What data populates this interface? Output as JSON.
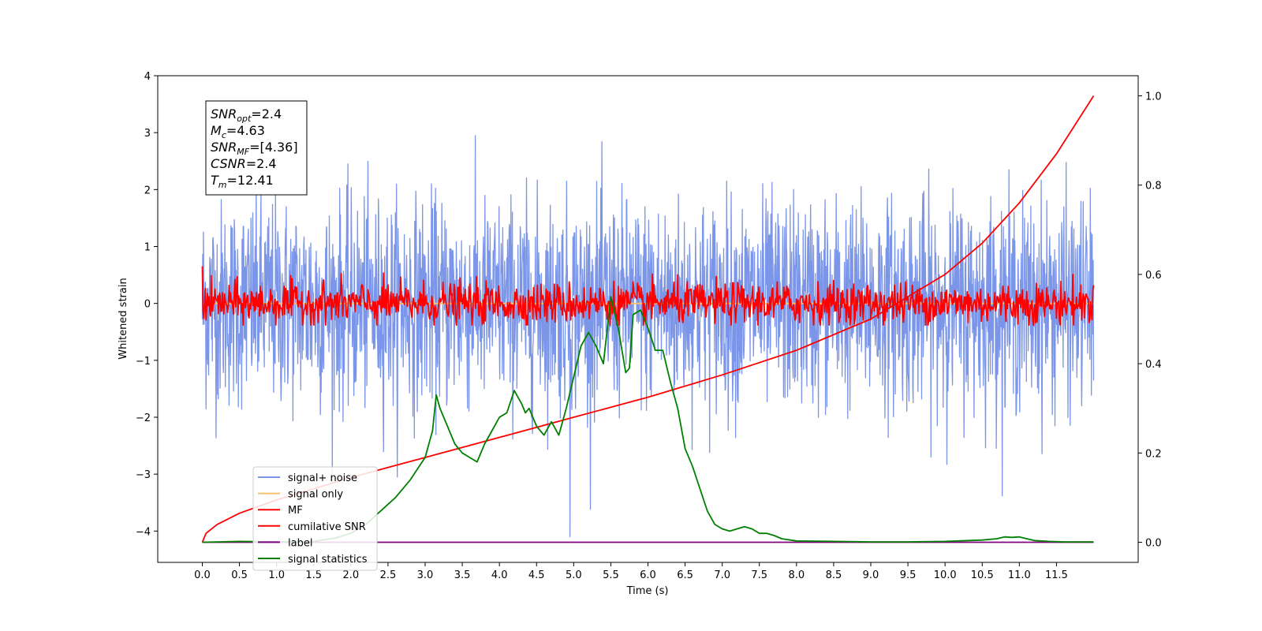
{
  "chart_data": {
    "type": "line",
    "xlabel": "Time (s)",
    "ylabel": "Whitened strain",
    "xlim": [
      -0.6,
      12.6
    ],
    "ylim_left": [
      -4.55,
      4.0
    ],
    "ylim_right": [
      -0.045,
      1.045
    ],
    "x_ticks": [
      "0.0",
      "0.5",
      "1.0",
      "1.5",
      "2.0",
      "2.5",
      "3.0",
      "3.5",
      "4.0",
      "4.5",
      "5.0",
      "5.5",
      "6.0",
      "6.5",
      "7.0",
      "7.5",
      "8.0",
      "8.5",
      "9.0",
      "9.5",
      "10.0",
      "10.5",
      "11.0",
      "11.5"
    ],
    "y_ticks_left": [
      4,
      3,
      2,
      1,
      0,
      -1,
      -2,
      -3,
      -4
    ],
    "y_tick_labels_left": [
      "4",
      "3",
      "2",
      "1",
      "0",
      "−1",
      "−2",
      "−3",
      "−4"
    ],
    "y_ticks_right": [
      "0.0",
      "0.2",
      "0.4",
      "0.6",
      "0.8",
      "1.0"
    ],
    "grid": false,
    "legend_placement": "lower-left",
    "stats_box": {
      "lines": [
        {
          "main": "SNR",
          "sub": "opt",
          "value": "=2.4"
        },
        {
          "main": "M",
          "sub": "c",
          "value": "=4.63"
        },
        {
          "main": "SNR",
          "sub": "MF",
          "value": "=[4.36]"
        },
        {
          "main": "CSNR",
          "sub": "",
          "value": "=2.4"
        },
        {
          "main": "T",
          "sub": "m",
          "value": "=12.41"
        }
      ]
    },
    "series": [
      {
        "name": "signal+ noise",
        "color": "#7b96e8",
        "axis": "left",
        "style": "noise",
        "x_range": [
          0.0,
          12.0
        ],
        "std": 0.9,
        "spike": {
          "x": 4.95,
          "y": -4.15
        }
      },
      {
        "name": "signal only",
        "color": "#f5c272",
        "axis": "left",
        "style": "flat",
        "value": 0.0
      },
      {
        "name": "MF",
        "color": "#ff0000",
        "axis": "left",
        "style": "mf",
        "x_range": [
          0.0,
          12.0
        ],
        "std": 0.18
      },
      {
        "name": "cumilative SNR",
        "color": "#ff0000",
        "axis": "right",
        "style": "line",
        "x": [
          0.0,
          0.05,
          0.2,
          0.5,
          1.0,
          1.5,
          2.0,
          3.0,
          4.0,
          5.0,
          6.0,
          7.0,
          8.0,
          9.0,
          10.0,
          10.5,
          11.0,
          11.5,
          12.0
        ],
        "y": [
          0.0,
          0.02,
          0.04,
          0.065,
          0.095,
          0.12,
          0.145,
          0.19,
          0.235,
          0.28,
          0.325,
          0.375,
          0.43,
          0.5,
          0.6,
          0.67,
          0.76,
          0.87,
          1.0
        ]
      },
      {
        "name": "label",
        "color": "#800080",
        "axis": "right",
        "style": "line",
        "x": [
          0.0,
          12.0
        ],
        "y": [
          0.0,
          0.0
        ]
      },
      {
        "name": "signal statistics",
        "color": "#008000",
        "axis": "right",
        "style": "line",
        "x": [
          0.0,
          0.5,
          1.0,
          1.5,
          1.8,
          2.0,
          2.2,
          2.4,
          2.6,
          2.8,
          3.0,
          3.1,
          3.15,
          3.2,
          3.3,
          3.4,
          3.5,
          3.6,
          3.7,
          3.8,
          3.9,
          4.0,
          4.1,
          4.2,
          4.3,
          4.35,
          4.4,
          4.5,
          4.6,
          4.7,
          4.8,
          4.9,
          5.0,
          5.1,
          5.2,
          5.3,
          5.4,
          5.5,
          5.6,
          5.7,
          5.75,
          5.8,
          5.9,
          6.0,
          6.1,
          6.2,
          6.3,
          6.4,
          6.5,
          6.6,
          6.7,
          6.8,
          6.9,
          7.0,
          7.1,
          7.2,
          7.3,
          7.4,
          7.5,
          7.6,
          7.7,
          7.8,
          8.0,
          8.5,
          9.0,
          9.5,
          10.0,
          10.5,
          10.7,
          10.8,
          10.9,
          11.0,
          11.1,
          11.2,
          11.4,
          11.6,
          12.0
        ],
        "y": [
          0.0,
          0.002,
          0.001,
          0.002,
          0.01,
          0.02,
          0.04,
          0.07,
          0.1,
          0.14,
          0.19,
          0.25,
          0.33,
          0.3,
          0.26,
          0.22,
          0.2,
          0.19,
          0.18,
          0.22,
          0.25,
          0.28,
          0.29,
          0.34,
          0.31,
          0.29,
          0.3,
          0.26,
          0.24,
          0.27,
          0.24,
          0.3,
          0.37,
          0.44,
          0.47,
          0.44,
          0.4,
          0.55,
          0.48,
          0.38,
          0.39,
          0.51,
          0.52,
          0.48,
          0.43,
          0.43,
          0.36,
          0.3,
          0.21,
          0.17,
          0.12,
          0.07,
          0.04,
          0.03,
          0.025,
          0.03,
          0.035,
          0.03,
          0.02,
          0.02,
          0.015,
          0.008,
          0.003,
          0.002,
          0.001,
          0.001,
          0.002,
          0.005,
          0.008,
          0.012,
          0.011,
          0.012,
          0.008,
          0.004,
          0.002,
          0.001,
          0.001
        ]
      }
    ]
  }
}
